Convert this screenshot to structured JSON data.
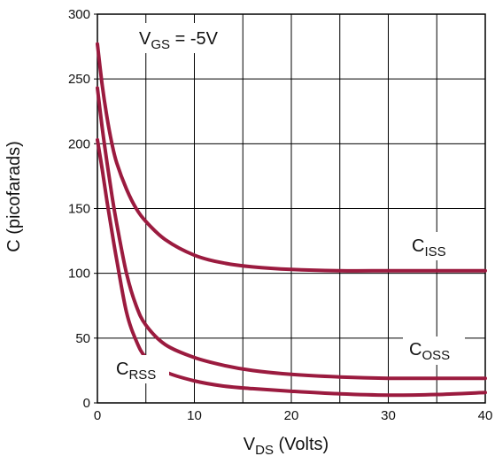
{
  "chart_data": {
    "type": "line",
    "title": "",
    "xlabel": {
      "main": "V",
      "sub": "DS",
      "rest": " (Volts)"
    },
    "ylabel": "C (picofarads)",
    "xlim": [
      0,
      40
    ],
    "ylim": [
      0,
      300
    ],
    "x_ticks": [
      0,
      10,
      20,
      30,
      40
    ],
    "y_ticks": [
      0,
      50,
      100,
      150,
      200,
      250,
      300
    ],
    "grid": "on",
    "grid_x_step": 5,
    "grid_y_step": 50,
    "line_color": "#9b1b3f",
    "condition_label": {
      "main": "V",
      "sub": "GS",
      "rest": " = -5V"
    },
    "series": [
      {
        "name": "C_ISS",
        "label_main": "C",
        "label_sub": "ISS",
        "points": [
          [
            0,
            277
          ],
          [
            0.5,
            245
          ],
          [
            1,
            220
          ],
          [
            1.5,
            200
          ],
          [
            2,
            185
          ],
          [
            3,
            165
          ],
          [
            4,
            150
          ],
          [
            5,
            140
          ],
          [
            7,
            126
          ],
          [
            10,
            114
          ],
          [
            13,
            108
          ],
          [
            16,
            105
          ],
          [
            20,
            103
          ],
          [
            25,
            102
          ],
          [
            30,
            102
          ],
          [
            35,
            102
          ],
          [
            40,
            102
          ]
        ]
      },
      {
        "name": "C_OSS",
        "label_main": "C",
        "label_sub": "OSS",
        "points": [
          [
            0,
            243
          ],
          [
            0.5,
            212
          ],
          [
            1,
            185
          ],
          [
            1.5,
            160
          ],
          [
            2,
            138
          ],
          [
            3,
            100
          ],
          [
            4,
            75
          ],
          [
            5,
            60
          ],
          [
            7,
            45
          ],
          [
            10,
            35
          ],
          [
            13,
            29
          ],
          [
            16,
            25
          ],
          [
            20,
            22
          ],
          [
            25,
            20
          ],
          [
            30,
            19
          ],
          [
            35,
            19
          ],
          [
            40,
            19
          ]
        ]
      },
      {
        "name": "C_RSS",
        "label_main": "C",
        "label_sub": "RSS",
        "points": [
          [
            0,
            203
          ],
          [
            0.5,
            180
          ],
          [
            1,
            155
          ],
          [
            1.5,
            132
          ],
          [
            2,
            110
          ],
          [
            3,
            70
          ],
          [
            4,
            48
          ],
          [
            5,
            35
          ],
          [
            7,
            24
          ],
          [
            10,
            17
          ],
          [
            13,
            13
          ],
          [
            16,
            11
          ],
          [
            20,
            9
          ],
          [
            25,
            7
          ],
          [
            30,
            6
          ],
          [
            35,
            6.5
          ],
          [
            40,
            8
          ]
        ]
      }
    ]
  }
}
